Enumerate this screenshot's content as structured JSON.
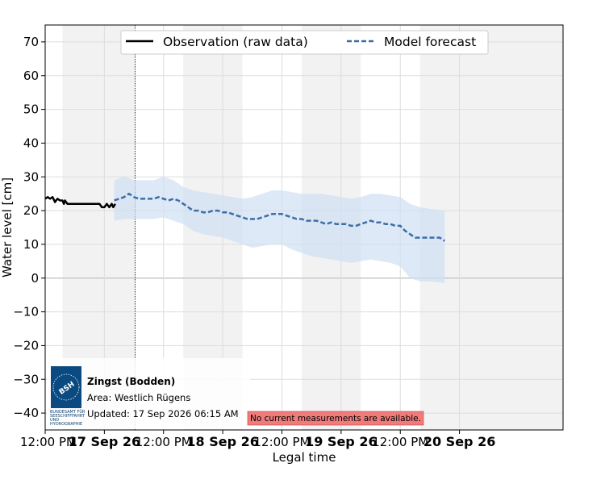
{
  "chart_data": {
    "type": "line",
    "xlabel": "Legal time",
    "ylabel": "Water level [cm]",
    "xlim": [
      -6,
      99
    ],
    "ylim": [
      -45,
      75
    ],
    "yticks": [
      -40,
      -30,
      -20,
      -10,
      0,
      10,
      20,
      30,
      40,
      50,
      60,
      70
    ],
    "yticklabels": [
      "−40",
      "−30",
      "−20",
      "−10",
      "0",
      "10",
      "20",
      "30",
      "40",
      "50",
      "60",
      "70"
    ],
    "xticks": [
      {
        "x": -6,
        "label": "12:00 PM",
        "bold": false
      },
      {
        "x": 6,
        "label": "17 Sep 26",
        "bold": true
      },
      {
        "x": 18,
        "label": "12:00 PM",
        "bold": false
      },
      {
        "x": 30,
        "label": "18 Sep 26",
        "bold": true
      },
      {
        "x": 42,
        "label": "12:00 PM",
        "bold": false
      },
      {
        "x": 54,
        "label": "19 Sep 26",
        "bold": true
      },
      {
        "x": 66,
        "label": "12:00 PM",
        "bold": false
      },
      {
        "x": 78,
        "label": "20 Sep 26",
        "bold": true
      }
    ],
    "now_x": 12.25,
    "night_bands": [
      [
        -2.5,
        12.25
      ],
      [
        22,
        34
      ],
      [
        46,
        58
      ],
      [
        70,
        99
      ]
    ],
    "series": [
      {
        "name": "Observation (raw data)",
        "style": "solid",
        "color": "#000000",
        "points": [
          [
            -6,
            23.5
          ],
          [
            -5.5,
            24
          ],
          [
            -5,
            23.5
          ],
          [
            -4.5,
            24
          ],
          [
            -4,
            22.5
          ],
          [
            -3.8,
            23
          ],
          [
            -3.5,
            23.5
          ],
          [
            -3,
            23
          ],
          [
            -2.5,
            23
          ],
          [
            -2.2,
            22
          ],
          [
            -2,
            23
          ],
          [
            -1.5,
            22
          ],
          [
            -1,
            22
          ],
          [
            0,
            22
          ],
          [
            1,
            22
          ],
          [
            2,
            22
          ],
          [
            3,
            22
          ],
          [
            4,
            22
          ],
          [
            5,
            22
          ],
          [
            5.5,
            21
          ],
          [
            6,
            21
          ],
          [
            6.5,
            22
          ],
          [
            7,
            21
          ],
          [
            7.5,
            22
          ],
          [
            7.8,
            21
          ],
          [
            8.2,
            22
          ]
        ]
      },
      {
        "name": "Model forecast",
        "style": "dashed",
        "color": "#3c6ea8",
        "points": [
          [
            8,
            23
          ],
          [
            9,
            23.5
          ],
          [
            10,
            24
          ],
          [
            11,
            25
          ],
          [
            12,
            24
          ],
          [
            13,
            23.5
          ],
          [
            14,
            23.5
          ],
          [
            15,
            23.5
          ],
          [
            16,
            23.5
          ],
          [
            17,
            24
          ],
          [
            18,
            23.5
          ],
          [
            19,
            23
          ],
          [
            20,
            23.5
          ],
          [
            21,
            23
          ],
          [
            22,
            22
          ],
          [
            23,
            21
          ],
          [
            24,
            20
          ],
          [
            25,
            20
          ],
          [
            26,
            19.5
          ],
          [
            27,
            19.5
          ],
          [
            28,
            20
          ],
          [
            29,
            20
          ],
          [
            30,
            19.5
          ],
          [
            31,
            19.5
          ],
          [
            32,
            19
          ],
          [
            33,
            18.5
          ],
          [
            34,
            18
          ],
          [
            35,
            17.5
          ],
          [
            36,
            17.5
          ],
          [
            37,
            17.5
          ],
          [
            38,
            18
          ],
          [
            39,
            18.5
          ],
          [
            40,
            19
          ],
          [
            41,
            19
          ],
          [
            42,
            19
          ],
          [
            43,
            18.5
          ],
          [
            44,
            18
          ],
          [
            45,
            17.5
          ],
          [
            46,
            17.5
          ],
          [
            47,
            17
          ],
          [
            48,
            17
          ],
          [
            49,
            17
          ],
          [
            50,
            16.5
          ],
          [
            51,
            16
          ],
          [
            52,
            16.5
          ],
          [
            53,
            16
          ],
          [
            54,
            16
          ],
          [
            55,
            16
          ],
          [
            56,
            15.5
          ],
          [
            57,
            15.5
          ],
          [
            58,
            16
          ],
          [
            59,
            16.5
          ],
          [
            60,
            17
          ],
          [
            61,
            16.5
          ],
          [
            62,
            16.5
          ],
          [
            63,
            16
          ],
          [
            64,
            16
          ],
          [
            65,
            15.5
          ],
          [
            66,
            15.5
          ],
          [
            67,
            14
          ],
          [
            68,
            13
          ],
          [
            69,
            12
          ],
          [
            70,
            12
          ],
          [
            71,
            12
          ],
          [
            72,
            12
          ],
          [
            73,
            12
          ],
          [
            74,
            12
          ],
          [
            75,
            11
          ]
        ]
      }
    ],
    "band": {
      "color": "#cfe0f2",
      "upper": [
        [
          8,
          29
        ],
        [
          10,
          30
        ],
        [
          12,
          29
        ],
        [
          14,
          29
        ],
        [
          16,
          29
        ],
        [
          18,
          30
        ],
        [
          20,
          29
        ],
        [
          22,
          27
        ],
        [
          24,
          26
        ],
        [
          26,
          25.5
        ],
        [
          28,
          25
        ],
        [
          30,
          24.5
        ],
        [
          32,
          24
        ],
        [
          34,
          23.5
        ],
        [
          36,
          24
        ],
        [
          38,
          25
        ],
        [
          40,
          26
        ],
        [
          42,
          26
        ],
        [
          44,
          25.5
        ],
        [
          46,
          25
        ],
        [
          48,
          25
        ],
        [
          50,
          25
        ],
        [
          52,
          24.5
        ],
        [
          54,
          24
        ],
        [
          56,
          23.5
        ],
        [
          58,
          24
        ],
        [
          60,
          25
        ],
        [
          62,
          25
        ],
        [
          64,
          24.5
        ],
        [
          66,
          24
        ],
        [
          68,
          22
        ],
        [
          70,
          21
        ],
        [
          72,
          20.5
        ],
        [
          75,
          20
        ]
      ],
      "lower": [
        [
          8,
          17
        ],
        [
          10,
          17.5
        ],
        [
          12,
          17.5
        ],
        [
          14,
          17.5
        ],
        [
          16,
          17.5
        ],
        [
          18,
          18
        ],
        [
          20,
          17
        ],
        [
          22,
          16
        ],
        [
          24,
          14
        ],
        [
          26,
          13
        ],
        [
          28,
          12.5
        ],
        [
          30,
          12
        ],
        [
          32,
          11
        ],
        [
          34,
          10
        ],
        [
          36,
          9
        ],
        [
          38,
          9.5
        ],
        [
          40,
          10
        ],
        [
          42,
          10
        ],
        [
          44,
          8.5
        ],
        [
          46,
          7.5
        ],
        [
          48,
          6.5
        ],
        [
          50,
          6
        ],
        [
          52,
          5.5
        ],
        [
          54,
          5
        ],
        [
          56,
          4.5
        ],
        [
          58,
          5
        ],
        [
          60,
          5.5
        ],
        [
          62,
          5
        ],
        [
          64,
          4.5
        ],
        [
          66,
          3.5
        ],
        [
          68,
          0
        ],
        [
          70,
          -1
        ],
        [
          72,
          -1
        ],
        [
          75,
          -1.5
        ]
      ]
    },
    "legend_position": "top-center",
    "grid": true
  },
  "info": {
    "station": "Zingst (Bodden)",
    "area": "Area: Westlich Rügens",
    "updated": "Updated: 17 Sep 2026 06:15 AM",
    "logo_text": "BSH",
    "logo_caption": [
      "BUNDESAMT FÜR",
      "SEESCHIFFFAHRT",
      "UND",
      "HYDROGRAPHIE"
    ]
  },
  "notice": "No current measurements are available.",
  "colors": {
    "night_band": "#f2f2f2",
    "grid": "#dddddd",
    "notice_bg": "#f07b7b",
    "logo_bg": "#0b4a80"
  }
}
